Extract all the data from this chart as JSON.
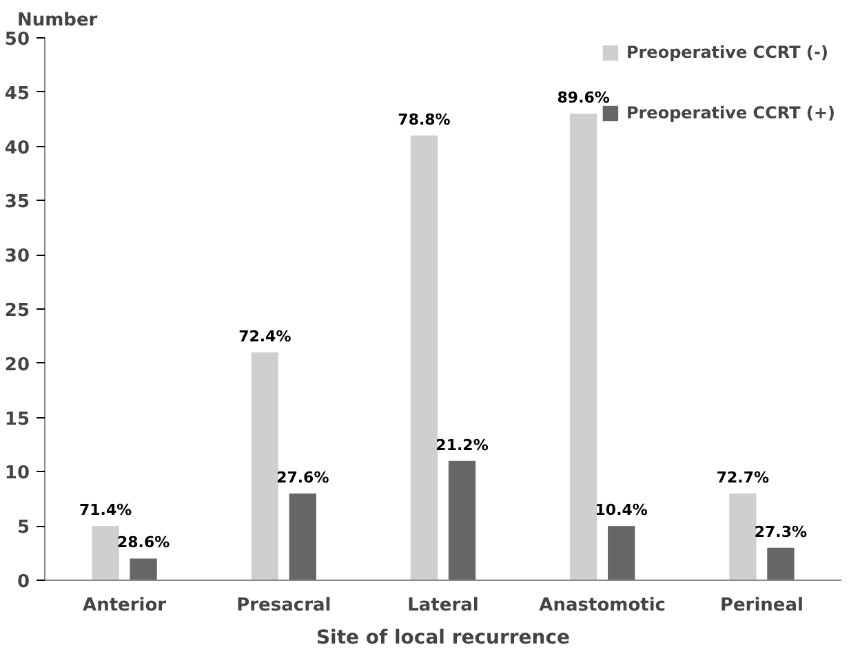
{
  "chart_data": {
    "type": "bar",
    "ylabel": "Number",
    "xlabel": "Site of local recurrence",
    "categories": [
      "Anterior",
      "Presacral",
      "Lateral",
      "Anastomotic",
      "Perineal"
    ],
    "series": [
      {
        "name": "Preoperative CCRT (-)",
        "color": "#cfcfcf",
        "values": [
          5,
          21,
          41,
          43,
          8
        ]
      },
      {
        "name": "Preoperative CCRT (+)",
        "color": "#666666",
        "values": [
          2,
          8,
          11,
          5,
          3
        ]
      }
    ],
    "annotations": [
      {
        "text": "71.4%",
        "x": "Anterior",
        "y": 5
      },
      {
        "text": "28.6%",
        "x": "Anterior",
        "y": 2
      },
      {
        "text": "72.4%",
        "x": "Presacral",
        "y": 21
      },
      {
        "text": "27.6%",
        "x": "Presacral",
        "y": 8
      },
      {
        "text": "78.8%",
        "x": "Lateral",
        "y": 41
      },
      {
        "text": "21.2%",
        "x": "Lateral",
        "y": 11
      },
      {
        "text": "89.6%",
        "x": "Anastomotic",
        "y": 43
      },
      {
        "text": "10.4%",
        "x": "Anastomotic",
        "y": 5
      },
      {
        "text": "72.7%",
        "x": "Perineal",
        "y": 8
      },
      {
        "text": "27.3%",
        "x": "Perineal",
        "y": 3
      }
    ],
    "ylim": [
      0,
      50
    ],
    "yticks": [
      0,
      5,
      10,
      15,
      20,
      25,
      30,
      35,
      40,
      45,
      50
    ],
    "grid": false,
    "legend": "top right"
  }
}
